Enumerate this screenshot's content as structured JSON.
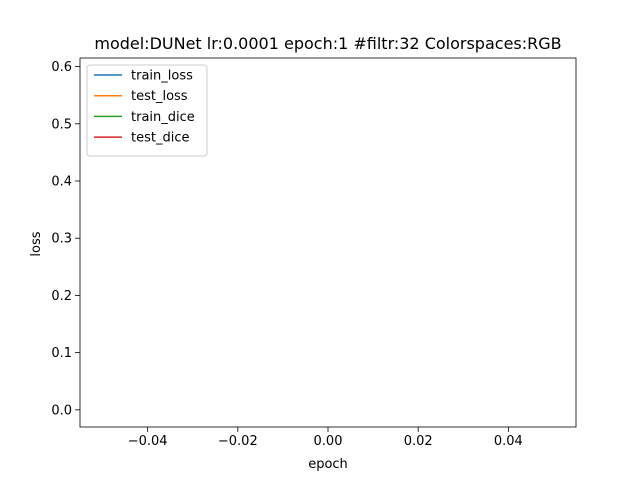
{
  "chart_data": {
    "type": "line",
    "title": "model:DUNet lr:0.0001 epoch:1 #filtr:32 Colorspaces:RGB",
    "xlabel": "epoch",
    "ylabel": "loss",
    "xlim": [
      -0.055,
      0.055
    ],
    "ylim": [
      -0.03,
      0.615
    ],
    "xticks": [
      -0.04,
      -0.02,
      0.0,
      0.02,
      0.04
    ],
    "xtick_labels": [
      "−0.04",
      "−0.02",
      "0.00",
      "0.02",
      "0.04"
    ],
    "yticks": [
      0.0,
      0.1,
      0.2,
      0.3,
      0.4,
      0.5,
      0.6
    ],
    "ytick_labels": [
      "0.0",
      "0.1",
      "0.2",
      "0.3",
      "0.4",
      "0.5",
      "0.6"
    ],
    "grid": false,
    "legend_position": "top-left",
    "series": [
      {
        "name": "train_loss",
        "color": "#1f77b4",
        "x": [],
        "values": []
      },
      {
        "name": "test_loss",
        "color": "#ff7f0e",
        "x": [],
        "values": []
      },
      {
        "name": "train_dice",
        "color": "#2ca02c",
        "x": [],
        "values": []
      },
      {
        "name": "test_dice",
        "color": "#d62728",
        "x": [],
        "values": []
      }
    ]
  }
}
